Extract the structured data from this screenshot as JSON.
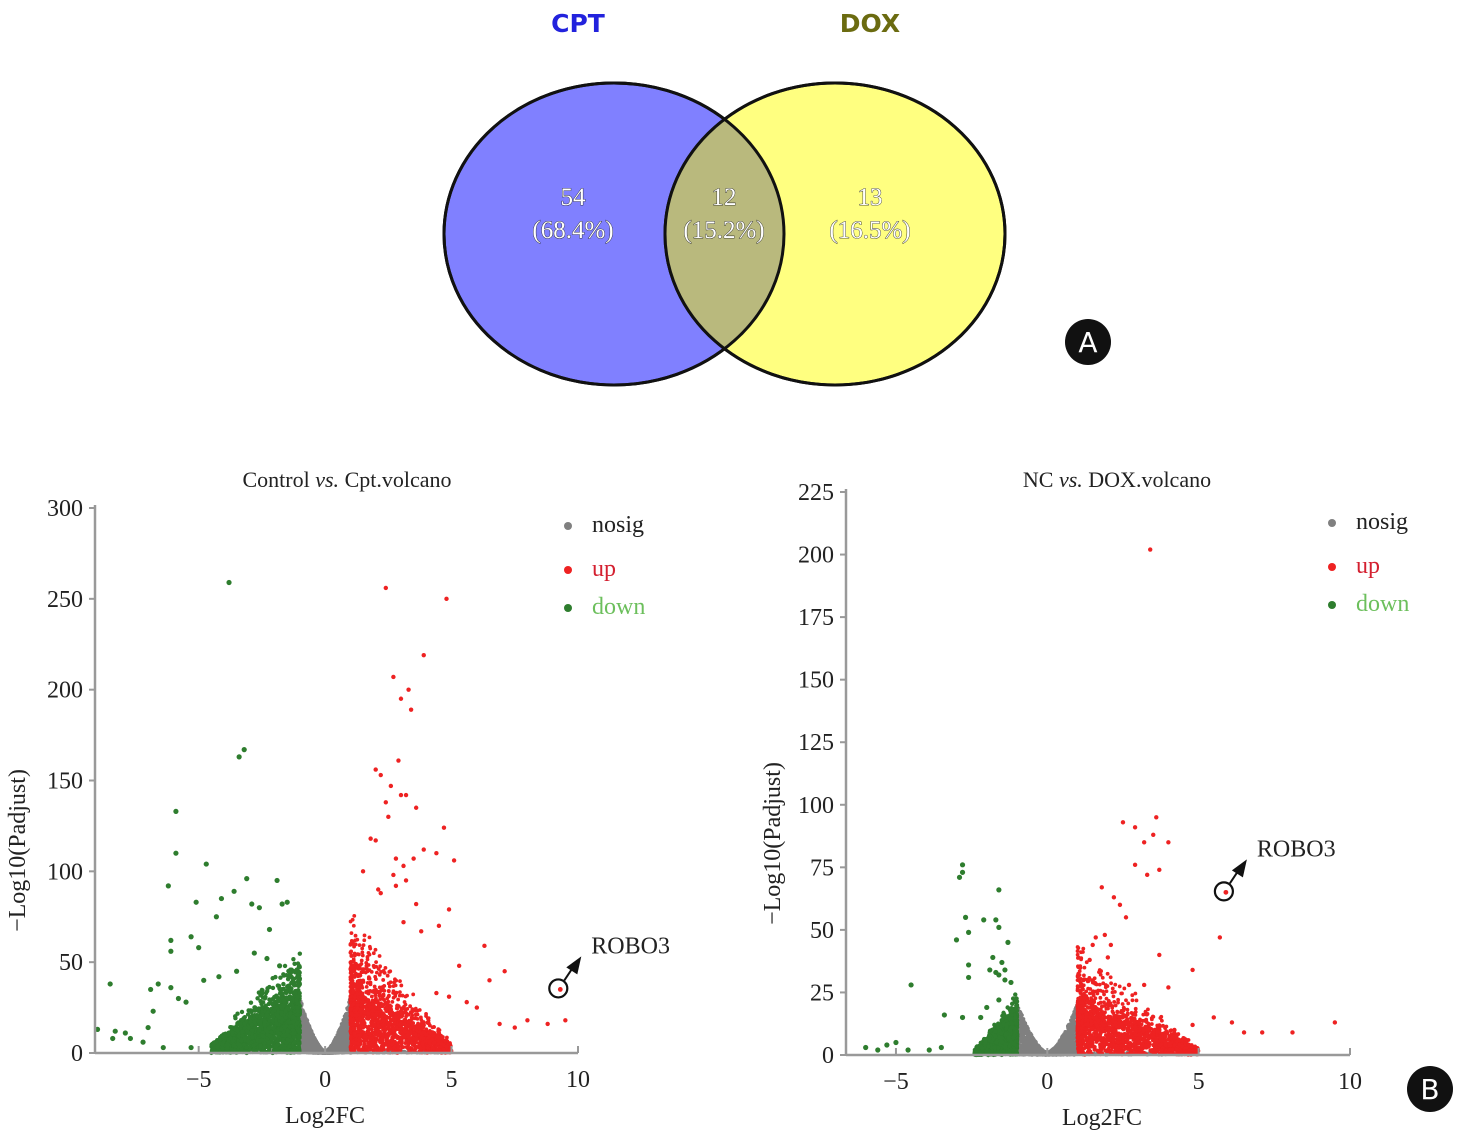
{
  "panel_labels": {
    "a": "A",
    "b": "B"
  },
  "chart_data": [
    {
      "type": "venn",
      "title": "",
      "sets": [
        {
          "name": "CPT",
          "color": "#8080ff",
          "label_color": "#2222dd"
        },
        {
          "name": "DOX",
          "color": "#ffff80",
          "label_color": "#6b6b10"
        }
      ],
      "overlap_color": "#b9b97d",
      "regions": [
        {
          "id": "cpt_only",
          "count": "54",
          "percent": "(68.4%)"
        },
        {
          "id": "both",
          "count": "12",
          "percent": "(15.2%)"
        },
        {
          "id": "dox_only",
          "count": "13",
          "percent": "(16.5%)"
        }
      ]
    },
    {
      "type": "scatter",
      "title_pre": "Control ",
      "title_italic": "vs.",
      "title_post": " Cpt.volcano",
      "xlabel": "Log2FC",
      "ylabel": "−Log10(Padjust)",
      "xlim": [
        -9.1,
        10
      ],
      "ylim": [
        0,
        300
      ],
      "xticks": [
        -5,
        0,
        5,
        10
      ],
      "xtick_labels": [
        "−5",
        "0",
        "5",
        "10"
      ],
      "yticks": [
        0,
        50,
        100,
        150,
        200,
        250,
        300
      ],
      "ytick_labels": [
        "0",
        "50",
        "100",
        "150",
        "200",
        "250",
        "300"
      ],
      "grid": false,
      "legend_position": "top-right",
      "legend": [
        {
          "name": "nosig",
          "color": "#808080",
          "text_color": "#222222"
        },
        {
          "name": "up",
          "color": "#ee2222",
          "text_color": "#d42030"
        },
        {
          "name": "down",
          "color": "#2e7d2e",
          "text_color": "#6cbf5c"
        }
      ],
      "thresholds": {
        "log2fc": 1
      },
      "annotation": {
        "label": "ROBO3",
        "x": 9.3,
        "y": 35
      },
      "highlight_points": {
        "down": [
          [
            -3.8,
            259
          ],
          [
            -3.4,
            163
          ],
          [
            -3.2,
            167
          ],
          [
            -5.9,
            133
          ],
          [
            -5.9,
            110
          ],
          [
            -4.7,
            104
          ],
          [
            -6.2,
            92
          ],
          [
            -3.1,
            96
          ],
          [
            -1.9,
            95
          ],
          [
            -3.6,
            89
          ],
          [
            -4.1,
            85
          ],
          [
            -5.1,
            83
          ],
          [
            -2.9,
            82
          ],
          [
            -1.7,
            82
          ],
          [
            -1.5,
            83
          ],
          [
            -2.6,
            80
          ],
          [
            -2.2,
            68
          ],
          [
            -4.3,
            75
          ],
          [
            -6.1,
            62
          ],
          [
            -6.1,
            56
          ],
          [
            -5.3,
            64
          ],
          [
            -5.0,
            58
          ],
          [
            -8.5,
            38
          ],
          [
            -6.9,
            35
          ],
          [
            -6.6,
            38
          ],
          [
            -6.1,
            36
          ],
          [
            -5.8,
            30
          ],
          [
            -5.5,
            28
          ],
          [
            -6.8,
            23
          ],
          [
            -7.0,
            14
          ],
          [
            -9.0,
            13
          ],
          [
            -8.3,
            12
          ],
          [
            -7.9,
            11
          ],
          [
            -8.4,
            8
          ],
          [
            -7.7,
            8
          ],
          [
            -7.2,
            6
          ],
          [
            -6.4,
            3
          ],
          [
            -5.3,
            3
          ],
          [
            -2.8,
            55
          ],
          [
            -2.3,
            52
          ],
          [
            -1.8,
            48
          ],
          [
            -3.5,
            45
          ],
          [
            -4.2,
            42
          ],
          [
            -4.8,
            40
          ]
        ],
        "up": [
          [
            2.4,
            256
          ],
          [
            4.8,
            250
          ],
          [
            3.9,
            219
          ],
          [
            2.7,
            207
          ],
          [
            3.3,
            200
          ],
          [
            3.0,
            195
          ],
          [
            3.4,
            189
          ],
          [
            2.9,
            161
          ],
          [
            2.0,
            156
          ],
          [
            2.2,
            153
          ],
          [
            2.6,
            147
          ],
          [
            3.0,
            142
          ],
          [
            3.2,
            142
          ],
          [
            2.4,
            138
          ],
          [
            3.6,
            135
          ],
          [
            2.5,
            130
          ],
          [
            1.8,
            118
          ],
          [
            2.0,
            117
          ],
          [
            4.7,
            124
          ],
          [
            3.9,
            112
          ],
          [
            4.4,
            110
          ],
          [
            2.8,
            107
          ],
          [
            3.5,
            107
          ],
          [
            3.1,
            103
          ],
          [
            5.1,
            106
          ],
          [
            1.5,
            100
          ],
          [
            2.7,
            98
          ],
          [
            3.2,
            95
          ],
          [
            2.8,
            92
          ],
          [
            2.1,
            90
          ],
          [
            2.2,
            88
          ],
          [
            3.6,
            82
          ],
          [
            4.9,
            79
          ],
          [
            3.1,
            72
          ],
          [
            3.8,
            67
          ],
          [
            4.5,
            70
          ],
          [
            6.3,
            59
          ],
          [
            5.3,
            48
          ],
          [
            6.5,
            40
          ],
          [
            7.1,
            45
          ],
          [
            8.8,
            16
          ],
          [
            9.5,
            18
          ],
          [
            8.0,
            18
          ],
          [
            7.5,
            14
          ],
          [
            6.9,
            16
          ],
          [
            6.0,
            25
          ],
          [
            5.6,
            28
          ],
          [
            4.9,
            31
          ],
          [
            4.4,
            33
          ]
        ]
      },
      "dense_regions": {
        "nosig": {
          "x_range": [
            -1,
            1
          ],
          "y_max_at_edge": 30
        },
        "down": {
          "x_range": [
            -4.5,
            -1
          ],
          "core_y_max": 33
        },
        "up": {
          "x_range": [
            1,
            5
          ],
          "core_y_max": 35
        }
      }
    },
    {
      "type": "scatter",
      "title_pre": "NC ",
      "title_italic": "vs.",
      "title_post": " DOX.volcano",
      "xlabel": "Log2FC",
      "ylabel": "−Log10(Padjust)",
      "xlim": [
        -6.65,
        10
      ],
      "ylim": [
        0,
        225
      ],
      "xticks": [
        -5,
        0,
        5,
        10
      ],
      "xtick_labels": [
        "−5",
        "0",
        "5",
        "10"
      ],
      "yticks": [
        0,
        25,
        50,
        75,
        100,
        125,
        150,
        175,
        200,
        225
      ],
      "ytick_labels": [
        "0",
        "25",
        "50",
        "75",
        "100",
        "125",
        "150",
        "175",
        "200",
        "225"
      ],
      "grid": false,
      "legend_position": "top-right",
      "legend": [
        {
          "name": "nosig",
          "color": "#808080",
          "text_color": "#222222"
        },
        {
          "name": "up",
          "color": "#ee2222",
          "text_color": "#d42030"
        },
        {
          "name": "down",
          "color": "#2e7d2e",
          "text_color": "#6cbf5c"
        }
      ],
      "thresholds": {
        "log2fc": 1
      },
      "annotation": {
        "label": "ROBO3",
        "x": 5.9,
        "y": 65
      },
      "highlight_points": {
        "down": [
          [
            -2.8,
            76
          ],
          [
            -2.8,
            73
          ],
          [
            -2.9,
            71
          ],
          [
            -1.6,
            66
          ],
          [
            -2.7,
            55
          ],
          [
            -2.1,
            54
          ],
          [
            -1.7,
            54
          ],
          [
            -2.6,
            49
          ],
          [
            -1.6,
            51
          ],
          [
            -3.0,
            46
          ],
          [
            -1.3,
            45
          ],
          [
            -1.8,
            39
          ],
          [
            -1.5,
            37
          ],
          [
            -2.6,
            36
          ],
          [
            -1.9,
            34
          ],
          [
            -1.4,
            34
          ],
          [
            -1.7,
            33
          ],
          [
            -1.6,
            32
          ],
          [
            -2.6,
            31
          ],
          [
            -1.4,
            30
          ],
          [
            -1.2,
            29
          ],
          [
            -4.5,
            28
          ],
          [
            -1.6,
            22
          ],
          [
            -2.0,
            19
          ],
          [
            -3.4,
            16
          ],
          [
            -2.8,
            15
          ],
          [
            -2.2,
            15
          ],
          [
            -6.0,
            3
          ],
          [
            -5.6,
            2
          ],
          [
            -5.3,
            4
          ],
          [
            -5.0,
            5
          ],
          [
            -4.6,
            2
          ],
          [
            -3.9,
            2
          ],
          [
            -3.5,
            3
          ]
        ],
        "up": [
          [
            3.4,
            202
          ],
          [
            2.5,
            93
          ],
          [
            3.6,
            95
          ],
          [
            2.9,
            91
          ],
          [
            3.5,
            88
          ],
          [
            3.2,
            85
          ],
          [
            4.0,
            85
          ],
          [
            2.9,
            76
          ],
          [
            3.7,
            74
          ],
          [
            3.3,
            72
          ],
          [
            1.8,
            67
          ],
          [
            2.2,
            63
          ],
          [
            2.4,
            60
          ],
          [
            2.6,
            55
          ],
          [
            5.7,
            47
          ],
          [
            1.9,
            48
          ],
          [
            1.6,
            47
          ],
          [
            2.1,
            44
          ],
          [
            1.5,
            44
          ],
          [
            1.4,
            38
          ],
          [
            2.0,
            39
          ],
          [
            3.7,
            40
          ],
          [
            4.8,
            34
          ],
          [
            3.2,
            28
          ],
          [
            2.7,
            28
          ],
          [
            4.0,
            27
          ],
          [
            8.1,
            9
          ],
          [
            9.5,
            13
          ],
          [
            7.1,
            9
          ],
          [
            6.5,
            9
          ],
          [
            6.1,
            13
          ],
          [
            5.5,
            15
          ],
          [
            4.8,
            12
          ],
          [
            4.2,
            10
          ]
        ]
      },
      "dense_regions": {
        "nosig": {
          "x_range": [
            -1,
            1
          ],
          "y_max_at_edge": 20
        },
        "down": {
          "x_range": [
            -2.4,
            -1
          ],
          "core_y_max": 14
        },
        "up": {
          "x_range": [
            1,
            5
          ],
          "core_y_max": 20
        }
      }
    }
  ]
}
